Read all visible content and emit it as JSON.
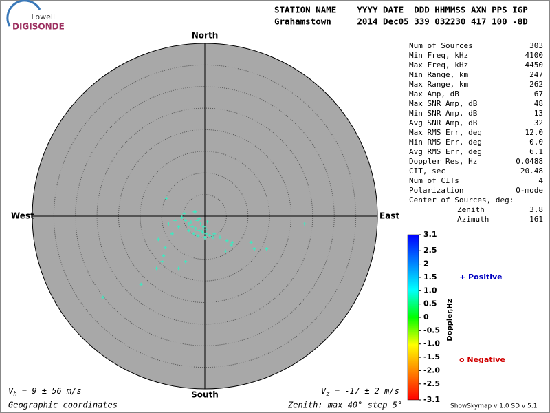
{
  "logo": {
    "top": "Lowell",
    "bottom": "DIGISONDE"
  },
  "header": {
    "line1": "STATION NAME    YYYY DATE  DDD HHMMSS AXN PPS IGP",
    "line2": "Grahamstown     2014 Dec05 339 032230 417 100 -8D"
  },
  "stats": [
    [
      "Num of Sources",
      "303"
    ],
    [
      "Min Freq, kHz",
      "4100"
    ],
    [
      "Max Freq, kHz",
      "4450"
    ],
    [
      "Min Range, km",
      "247"
    ],
    [
      "Max Range, km",
      "262"
    ],
    [
      "Max Amp, dB",
      "67"
    ],
    [
      "Max SNR Amp, dB",
      "48"
    ],
    [
      "Min SNR Amp, dB",
      "13"
    ],
    [
      "Avg SNR Amp, dB",
      "32"
    ],
    [
      "Max RMS Err, deg",
      "12.0"
    ],
    [
      "Min RMS Err, deg",
      "0.0"
    ],
    [
      "Avg RMS Err, deg",
      "6.1"
    ],
    [
      "Doppler Res, Hz",
      "0.0488"
    ],
    [
      "CIT, sec",
      "20.48"
    ],
    [
      "Num of CITs",
      "4"
    ],
    [
      "Polarization",
      "O-mode"
    ]
  ],
  "center": {
    "title": "Center of Sources, deg:",
    "rows": [
      [
        "Zenith",
        "3.8"
      ],
      [
        "Azimuth",
        "161"
      ]
    ]
  },
  "colorbar": {
    "label": "Doppler,Hz",
    "lim": [
      -3.1,
      3.1
    ],
    "colors": [
      "#ff0000",
      "#ff8000",
      "#ffff00",
      "#00ff00",
      "#00ffff",
      "#0080ff",
      "#0000ff"
    ],
    "ticks": [
      3.1,
      2.5,
      {
        "value": 2,
        "label": "2"
      },
      1.5,
      {
        "value": 1,
        "label": "1.0"
      },
      0.5,
      0,
      -0.5,
      {
        "value": -1,
        "label": "-1.0"
      },
      -1.5,
      {
        "value": -2,
        "label": "-2.0"
      },
      -2.5,
      -3.1
    ]
  },
  "legend": {
    "positive": "+ Positive",
    "negative": "o Negative"
  },
  "footer": {
    "vh": [
      "V",
      "h",
      " = 9 ± 56 m/s"
    ],
    "vz": [
      "V",
      "z",
      " = -17 ± 2 m/s"
    ],
    "coords": "Geographic coordinates",
    "zenith": "Zenith: max 40°  step 5°",
    "version": "ShowSkymap v 1.0  SD v 5.1"
  },
  "chart_data": {
    "type": "scatter",
    "directions": {
      "north": "North",
      "south": "South",
      "east": "East",
      "west": "West"
    },
    "xlim": [
      -40,
      40
    ],
    "ylim": [
      -40,
      40
    ],
    "rings": [
      5,
      10,
      15,
      20,
      25,
      30,
      35
    ],
    "series": [
      {
        "name": "Positive",
        "color": "#40e8c0",
        "x": [
          -8.9,
          -5.3,
          -4.5,
          -3.7,
          -2.9,
          -2.1,
          -1.3,
          -0.5,
          0.3,
          1.1,
          1.9,
          -2.4,
          -1.8,
          -1.0,
          -0.3,
          0.3,
          -6.1,
          -7.6,
          -8.4,
          -10.8,
          -9.2,
          -9.6,
          -9.9,
          -4.5,
          -6.1,
          -11.2,
          -14.8,
          -23.6,
          3.5,
          5.1,
          6.1,
          6.4,
          4.8,
          10.7,
          11.5,
          14.3,
          23.1,
          -3.7,
          -2.6,
          -1.6,
          -6.9,
          -4.8,
          -1.3,
          0.6,
          0.0,
          2.2,
          -2.2,
          -3.2,
          -0.6
        ],
        "y": [
          4.1,
          -0.3,
          -1.0,
          -1.8,
          -2.5,
          -2.9,
          -3.3,
          -3.8,
          -4.1,
          -4.5,
          -4.9,
          1.0,
          -1.0,
          -1.8,
          -2.5,
          -3.0,
          -2.5,
          -4.1,
          -1.8,
          -5.4,
          -7.3,
          -9.2,
          -10.5,
          -10.5,
          -12.1,
          -12.1,
          -15.8,
          -18.8,
          -4.9,
          -5.7,
          -6.7,
          -6.1,
          -8.1,
          -6.1,
          -7.6,
          -7.6,
          -1.8,
          -3.3,
          -4.1,
          -4.6,
          -1.0,
          0.6,
          -0.6,
          -1.3,
          -5.0,
          -4.1,
          1.0,
          -1.4,
          -3.5
        ]
      }
    ]
  }
}
